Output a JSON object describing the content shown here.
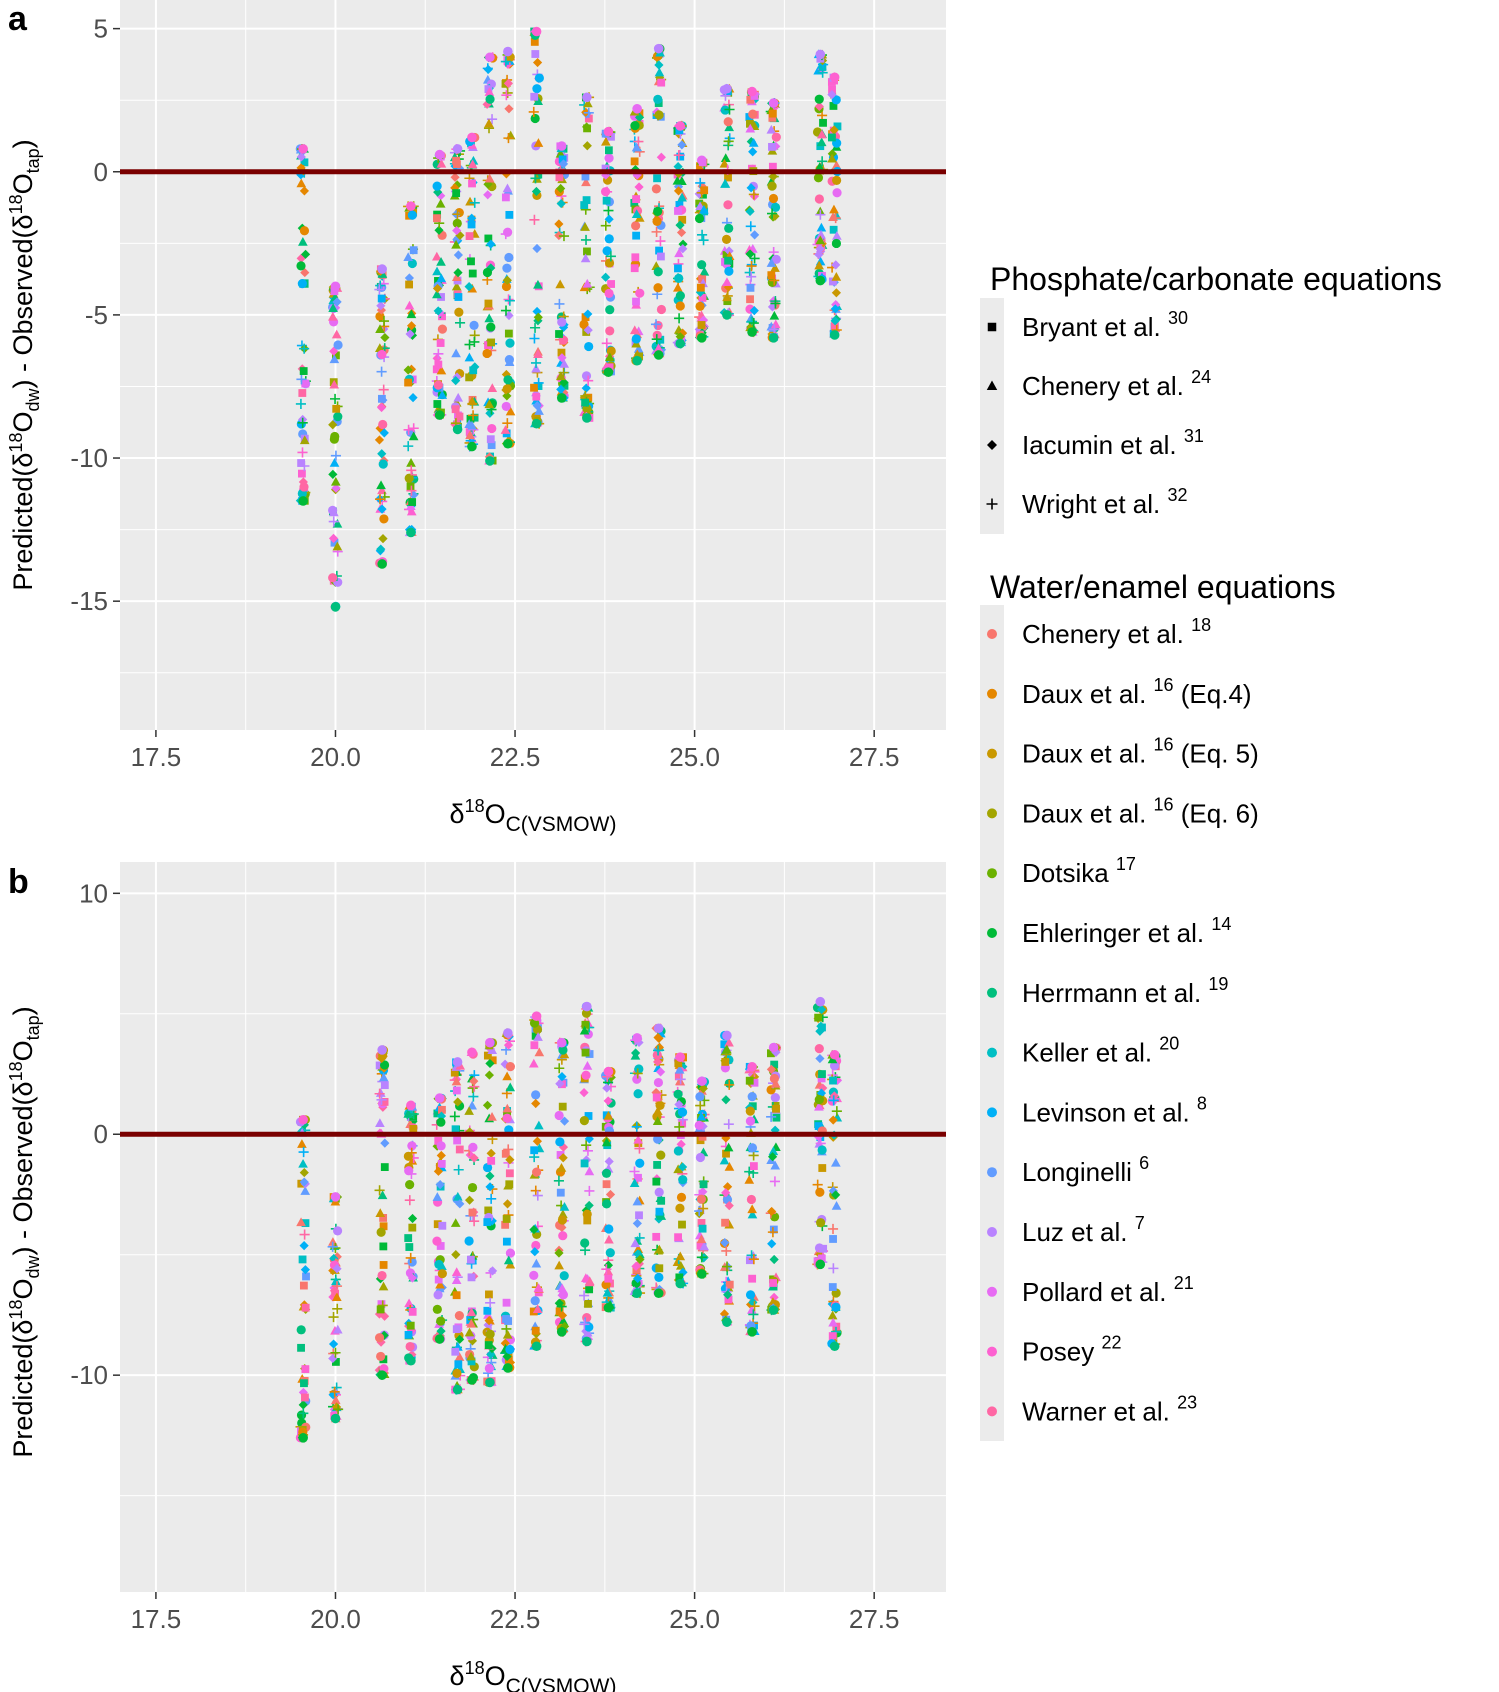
{
  "chart_data": [
    {
      "panel": "a",
      "type": "scatter",
      "xlabel": {
        "prefix": "δ",
        "sup": "18",
        "base": "O",
        "sub": "C(VSMOW)"
      },
      "ylabel": "Predicted(δ18Odw) - Observed(δ18Otap)",
      "xlim": [
        17.0,
        28.5
      ],
      "ylim": [
        -19.5,
        6.0
      ],
      "xticks": [
        17.5,
        20.0,
        22.5,
        25.0,
        27.5
      ],
      "xtick_labels": [
        "17.5",
        "20.0",
        "22.5",
        "25.0",
        "27.5"
      ],
      "yticks": [
        5,
        0,
        -5,
        -10,
        -15
      ],
      "ytick_labels": [
        "5",
        "0",
        "-5",
        "-10",
        "-15"
      ],
      "reference_line": {
        "y": 0,
        "color": "#7a0000"
      },
      "x_groups": [
        19.55,
        20.0,
        20.65,
        21.05,
        21.45,
        21.7,
        21.9,
        22.15,
        22.4,
        22.8,
        23.15,
        23.5,
        23.8,
        24.2,
        24.5,
        24.8,
        25.1,
        25.45,
        25.8,
        26.1,
        26.75,
        26.95
      ],
      "group_ranges": [
        [
          -11.5,
          0.8
        ],
        [
          -15.2,
          -4.0
        ],
        [
          -13.7,
          -3.4
        ],
        [
          -12.6,
          -1.2
        ],
        [
          -8.5,
          0.6
        ],
        [
          -9.0,
          0.8
        ],
        [
          -9.6,
          1.2
        ],
        [
          -10.1,
          4.0
        ],
        [
          -9.5,
          4.2
        ],
        [
          -8.8,
          4.9
        ],
        [
          -7.9,
          0.9
        ],
        [
          -8.6,
          2.6
        ],
        [
          -7.0,
          1.4
        ],
        [
          -6.6,
          2.2
        ],
        [
          -6.4,
          4.3
        ],
        [
          -6.0,
          1.6
        ],
        [
          -5.8,
          0.4
        ],
        [
          -5.0,
          2.9
        ],
        [
          -5.6,
          2.8
        ],
        [
          -5.8,
          2.4
        ],
        [
          -3.8,
          4.1
        ],
        [
          -5.7,
          3.3
        ]
      ]
    },
    {
      "panel": "b",
      "type": "scatter",
      "xlabel": {
        "prefix": "δ",
        "sup": "18",
        "base": "O",
        "sub": "C(VSMOW)"
      },
      "ylabel": "Predicted(δ18Odw) - Observed(δ18Otap)",
      "xlim": [
        17.0,
        28.5
      ],
      "ylim": [
        -19.0,
        11.3
      ],
      "xticks": [
        17.5,
        20.0,
        22.5,
        25.0,
        27.5
      ],
      "xtick_labels": [
        "17.5",
        "20.0",
        "22.5",
        "25.0",
        "27.5"
      ],
      "yticks": [
        10,
        0,
        -10
      ],
      "ytick_labels": [
        "10",
        "0",
        "-10"
      ],
      "reference_line": {
        "y": 0,
        "color": "#7a0000"
      },
      "x_groups": [
        19.55,
        20.0,
        20.65,
        21.05,
        21.45,
        21.7,
        21.9,
        22.15,
        22.4,
        22.8,
        23.15,
        23.5,
        23.8,
        24.2,
        24.5,
        24.8,
        25.1,
        25.45,
        25.8,
        26.1,
        26.75,
        26.95
      ],
      "group_ranges": [
        [
          -12.6,
          0.6
        ],
        [
          -11.8,
          -2.6
        ],
        [
          -10.0,
          3.5
        ],
        [
          -9.4,
          1.2
        ],
        [
          -8.5,
          1.5
        ],
        [
          -10.6,
          3.0
        ],
        [
          -10.2,
          3.4
        ],
        [
          -10.3,
          3.8
        ],
        [
          -9.7,
          4.2
        ],
        [
          -8.8,
          4.9
        ],
        [
          -8.2,
          3.8
        ],
        [
          -8.6,
          5.3
        ],
        [
          -7.2,
          2.6
        ],
        [
          -6.6,
          4.0
        ],
        [
          -6.6,
          4.4
        ],
        [
          -6.2,
          3.2
        ],
        [
          -5.8,
          2.2
        ],
        [
          -7.8,
          4.1
        ],
        [
          -8.2,
          2.8
        ],
        [
          -7.3,
          3.6
        ],
        [
          -5.4,
          5.5
        ],
        [
          -8.8,
          3.3
        ]
      ]
    }
  ],
  "legend": {
    "shape_title": "Phosphate/carbonate equations",
    "shapes": [
      {
        "key": "square",
        "name": "Bryant et al.",
        "ref": "30"
      },
      {
        "key": "triangle",
        "name": "Chenery et al.",
        "ref": "24"
      },
      {
        "key": "diamond",
        "name": "Iacumin et al.",
        "ref": "31"
      },
      {
        "key": "plus",
        "name": "Wright et al.",
        "ref": "32"
      }
    ],
    "color_title": "Water/enamel equations",
    "colors": [
      {
        "name": "Chenery et al.",
        "ref": "18",
        "extra": "",
        "color": "#F8766D"
      },
      {
        "name": "Daux et al.",
        "ref": "16",
        "extra": "(Eq.4)",
        "color": "#E58700"
      },
      {
        "name": "Daux et al.",
        "ref": "16",
        "extra": "(Eq. 5)",
        "color": "#C99800"
      },
      {
        "name": "Daux et al.",
        "ref": "16",
        "extra": "(Eq. 6)",
        "color": "#A3A500"
      },
      {
        "name": "Dotsika",
        "ref": "17",
        "extra": "",
        "color": "#6BB100"
      },
      {
        "name": "Ehleringer et al.",
        "ref": "14",
        "extra": "",
        "color": "#00BA38"
      },
      {
        "name": "Herrmann et al.",
        "ref": "19",
        "extra": "",
        "color": "#00BF7D"
      },
      {
        "name": "Keller et al.",
        "ref": "20",
        "extra": "",
        "color": "#00BFC4"
      },
      {
        "name": "Levinson et al.",
        "ref": "8",
        "extra": "",
        "color": "#00B0F6"
      },
      {
        "name": "Longinelli",
        "ref": "6",
        "extra": "",
        "color": "#619CFF"
      },
      {
        "name": "Luz et al.",
        "ref": "7",
        "extra": "",
        "color": "#B983FF"
      },
      {
        "name": "Pollard et al.",
        "ref": "21",
        "extra": "",
        "color": "#E76BF3"
      },
      {
        "name": "Posey",
        "ref": "22",
        "extra": "",
        "color": "#FD61D1"
      },
      {
        "name": "Warner et al.",
        "ref": "23",
        "extra": "",
        "color": "#FF67A4"
      }
    ]
  },
  "panel_labels": [
    "a",
    "b"
  ]
}
